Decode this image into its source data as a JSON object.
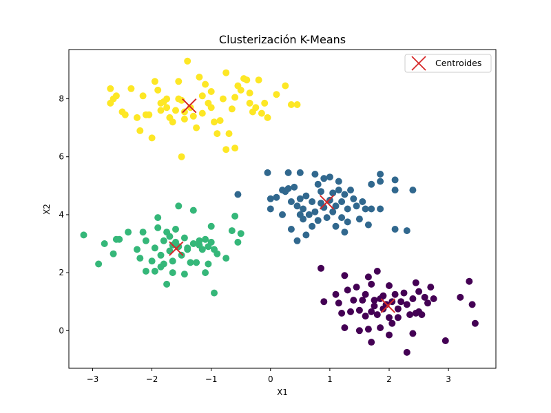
{
  "chart_data": {
    "type": "scatter",
    "title": "Clusterización K-Means",
    "xlabel": "X1",
    "ylabel": "X2",
    "xlim": [
      -3.4,
      3.8
    ],
    "ylim": [
      -1.3,
      9.7
    ],
    "xticks": [
      -3,
      -2,
      -1,
      0,
      1,
      2,
      3
    ],
    "yticks": [
      0,
      2,
      4,
      6,
      8
    ],
    "grid": false,
    "legend_position": "top-right",
    "series": [
      {
        "cluster": 0,
        "color": "#440154",
        "points": [
          [
            0.85,
            2.15
          ],
          [
            0.9,
            1.0
          ],
          [
            1.1,
            1.25
          ],
          [
            1.15,
            0.95
          ],
          [
            1.2,
            0.6
          ],
          [
            1.25,
            1.9
          ],
          [
            1.25,
            0.1
          ],
          [
            1.3,
            1.4
          ],
          [
            1.35,
            0.65
          ],
          [
            1.4,
            1.05
          ],
          [
            1.45,
            1.5
          ],
          [
            1.5,
            0.0
          ],
          [
            1.5,
            0.7
          ],
          [
            1.55,
            1.05
          ],
          [
            1.6,
            0.5
          ],
          [
            1.6,
            1.25
          ],
          [
            1.65,
            0.05
          ],
          [
            1.65,
            1.85
          ],
          [
            1.7,
            0.65
          ],
          [
            1.7,
            -0.4
          ],
          [
            1.75,
            1.05
          ],
          [
            1.75,
            0.85
          ],
          [
            1.8,
            2.05
          ],
          [
            1.8,
            0.55
          ],
          [
            1.85,
            0.1
          ],
          [
            1.85,
            1.1
          ],
          [
            1.9,
            0.75
          ],
          [
            1.9,
            1.2
          ],
          [
            1.95,
            0.9
          ],
          [
            2.0,
            0.45
          ],
          [
            2.0,
            1.55
          ],
          [
            2.05,
            1.0
          ],
          [
            2.05,
            0.25
          ],
          [
            2.1,
            1.25
          ],
          [
            2.15,
            0.75
          ],
          [
            2.2,
            1.0
          ],
          [
            2.25,
            1.3
          ],
          [
            2.3,
            0.9
          ],
          [
            2.3,
            -0.75
          ],
          [
            2.35,
            0.55
          ],
          [
            2.4,
            1.1
          ],
          [
            2.4,
            -0.1
          ],
          [
            2.45,
            1.65
          ],
          [
            2.5,
            0.65
          ],
          [
            2.5,
            1.35
          ],
          [
            2.55,
            0.55
          ],
          [
            2.6,
            1.15
          ],
          [
            2.65,
            0.95
          ],
          [
            2.7,
            1.5
          ],
          [
            2.75,
            1.1
          ],
          [
            2.95,
            -0.35
          ],
          [
            3.2,
            1.15
          ],
          [
            3.35,
            1.7
          ],
          [
            3.4,
            0.9
          ],
          [
            3.45,
            0.25
          ],
          [
            2.0,
            -0.15
          ],
          [
            1.95,
            0.9
          ],
          [
            1.7,
            1.6
          ],
          [
            2.15,
            0.45
          ],
          [
            2.45,
            0.6
          ]
        ]
      },
      {
        "cluster": 1,
        "color": "#31688e",
        "points": [
          [
            -0.55,
            4.7
          ],
          [
            -0.05,
            5.45
          ],
          [
            0.0,
            4.55
          ],
          [
            0.0,
            4.2
          ],
          [
            0.1,
            4.6
          ],
          [
            0.2,
            4.0
          ],
          [
            0.2,
            4.85
          ],
          [
            0.25,
            4.8
          ],
          [
            0.3,
            5.45
          ],
          [
            0.3,
            4.9
          ],
          [
            0.35,
            4.45
          ],
          [
            0.35,
            3.5
          ],
          [
            0.4,
            4.95
          ],
          [
            0.45,
            4.3
          ],
          [
            0.45,
            3.1
          ],
          [
            0.5,
            4.0
          ],
          [
            0.5,
            4.55
          ],
          [
            0.5,
            5.45
          ],
          [
            0.55,
            3.85
          ],
          [
            0.55,
            4.2
          ],
          [
            0.6,
            4.65
          ],
          [
            0.6,
            3.3
          ],
          [
            0.65,
            4.0
          ],
          [
            0.7,
            4.45
          ],
          [
            0.7,
            3.6
          ],
          [
            0.75,
            5.4
          ],
          [
            0.75,
            4.1
          ],
          [
            0.8,
            5.05
          ],
          [
            0.8,
            3.8
          ],
          [
            0.85,
            4.8
          ],
          [
            0.85,
            4.4
          ],
          [
            0.9,
            4.25
          ],
          [
            0.9,
            5.25
          ],
          [
            0.95,
            3.9
          ],
          [
            1.0,
            4.5
          ],
          [
            1.0,
            5.3
          ],
          [
            1.05,
            4.1
          ],
          [
            1.05,
            4.75
          ],
          [
            1.1,
            4.3
          ],
          [
            1.1,
            3.6
          ],
          [
            1.15,
            4.85
          ],
          [
            1.15,
            5.15
          ],
          [
            1.2,
            4.45
          ],
          [
            1.2,
            3.9
          ],
          [
            1.25,
            3.4
          ],
          [
            1.25,
            4.7
          ],
          [
            1.3,
            4.2
          ],
          [
            1.35,
            4.85
          ],
          [
            1.4,
            4.55
          ],
          [
            1.45,
            4.3
          ],
          [
            1.5,
            3.85
          ],
          [
            1.6,
            4.2
          ],
          [
            1.65,
            3.65
          ],
          [
            1.7,
            5.05
          ],
          [
            1.7,
            4.2
          ],
          [
            1.85,
            5.4
          ],
          [
            1.85,
            5.15
          ],
          [
            1.85,
            4.2
          ],
          [
            2.1,
            5.2
          ],
          [
            2.1,
            4.85
          ],
          [
            2.1,
            3.5
          ],
          [
            2.3,
            3.45
          ],
          [
            2.4,
            4.85
          ],
          [
            1.3,
            3.75
          ],
          [
            1.55,
            4.45
          ]
        ]
      },
      {
        "cluster": 2,
        "color": "#35b779",
        "points": [
          [
            -3.15,
            3.3
          ],
          [
            -2.9,
            2.3
          ],
          [
            -2.8,
            3.0
          ],
          [
            -2.65,
            2.65
          ],
          [
            -2.6,
            3.15
          ],
          [
            -2.55,
            3.15
          ],
          [
            -2.4,
            3.4
          ],
          [
            -2.25,
            2.8
          ],
          [
            -2.2,
            2.5
          ],
          [
            -2.15,
            3.4
          ],
          [
            -2.1,
            3.1
          ],
          [
            -2.1,
            2.05
          ],
          [
            -2.0,
            2.4
          ],
          [
            -1.95,
            2.05
          ],
          [
            -1.95,
            2.85
          ],
          [
            -1.9,
            3.55
          ],
          [
            -1.9,
            3.9
          ],
          [
            -1.85,
            2.6
          ],
          [
            -1.85,
            2.2
          ],
          [
            -1.8,
            3.1
          ],
          [
            -1.8,
            2.3
          ],
          [
            -1.75,
            3.4
          ],
          [
            -1.75,
            1.6
          ],
          [
            -1.7,
            2.75
          ],
          [
            -1.7,
            3.25
          ],
          [
            -1.65,
            2.0
          ],
          [
            -1.65,
            2.4
          ],
          [
            -1.6,
            3.05
          ],
          [
            -1.6,
            3.5
          ],
          [
            -1.55,
            2.9
          ],
          [
            -1.55,
            4.3
          ],
          [
            -1.5,
            2.6
          ],
          [
            -1.45,
            3.2
          ],
          [
            -1.45,
            1.95
          ],
          [
            -1.4,
            2.8
          ],
          [
            -1.35,
            2.35
          ],
          [
            -1.3,
            3.0
          ],
          [
            -1.3,
            4.15
          ],
          [
            -1.25,
            2.35
          ],
          [
            -1.2,
            3.1
          ],
          [
            -1.15,
            2.8
          ],
          [
            -1.1,
            3.15
          ],
          [
            -1.1,
            2.0
          ],
          [
            -1.05,
            2.9
          ],
          [
            -1.0,
            3.05
          ],
          [
            -1.0,
            3.6
          ],
          [
            -0.95,
            2.8
          ],
          [
            -0.95,
            1.3
          ],
          [
            -0.9,
            2.65
          ],
          [
            -0.75,
            2.5
          ],
          [
            -0.65,
            3.45
          ],
          [
            -0.6,
            3.95
          ],
          [
            -0.55,
            3.05
          ],
          [
            -0.5,
            3.35
          ],
          [
            -1.4,
            2.85
          ],
          [
            -1.05,
            2.3
          ],
          [
            -1.2,
            2.95
          ],
          [
            -1.65,
            2.95
          ]
        ]
      },
      {
        "cluster": 3,
        "color": "#fde725",
        "points": [
          [
            -2.7,
            8.35
          ],
          [
            -2.7,
            7.85
          ],
          [
            -2.65,
            8.0
          ],
          [
            -2.6,
            8.1
          ],
          [
            -2.5,
            7.55
          ],
          [
            -2.45,
            7.45
          ],
          [
            -2.35,
            8.35
          ],
          [
            -2.25,
            7.35
          ],
          [
            -2.2,
            6.9
          ],
          [
            -2.15,
            8.1
          ],
          [
            -2.1,
            7.45
          ],
          [
            -2.05,
            7.45
          ],
          [
            -2.0,
            6.65
          ],
          [
            -1.95,
            8.6
          ],
          [
            -1.9,
            8.3
          ],
          [
            -1.85,
            7.85
          ],
          [
            -1.85,
            7.6
          ],
          [
            -1.8,
            7.9
          ],
          [
            -1.75,
            7.7
          ],
          [
            -1.75,
            8.0
          ],
          [
            -1.7,
            7.35
          ],
          [
            -1.65,
            7.2
          ],
          [
            -1.6,
            7.6
          ],
          [
            -1.55,
            8.0
          ],
          [
            -1.55,
            8.6
          ],
          [
            -1.5,
            7.95
          ],
          [
            -1.45,
            7.3
          ],
          [
            -1.45,
            7.55
          ],
          [
            -1.4,
            9.3
          ],
          [
            -1.35,
            7.7
          ],
          [
            -1.3,
            7.4
          ],
          [
            -1.25,
            7.0
          ],
          [
            -1.2,
            8.75
          ],
          [
            -1.15,
            8.1
          ],
          [
            -1.15,
            7.5
          ],
          [
            -1.1,
            8.5
          ],
          [
            -1.05,
            7.85
          ],
          [
            -1.0,
            7.7
          ],
          [
            -1.0,
            8.25
          ],
          [
            -0.95,
            7.2
          ],
          [
            -0.9,
            6.8
          ],
          [
            -0.85,
            7.25
          ],
          [
            -0.8,
            8.0
          ],
          [
            -0.75,
            8.9
          ],
          [
            -0.7,
            6.8
          ],
          [
            -0.65,
            7.65
          ],
          [
            -0.6,
            8.05
          ],
          [
            -0.55,
            8.45
          ],
          [
            -0.5,
            8.3
          ],
          [
            -0.45,
            8.7
          ],
          [
            -0.4,
            8.65
          ],
          [
            -0.35,
            8.2
          ],
          [
            -0.3,
            7.55
          ],
          [
            -0.25,
            7.7
          ],
          [
            -0.2,
            8.65
          ],
          [
            -0.15,
            7.5
          ],
          [
            -0.1,
            7.85
          ],
          [
            -0.05,
            7.35
          ],
          [
            0.1,
            8.15
          ],
          [
            0.25,
            8.45
          ],
          [
            0.45,
            7.8
          ],
          [
            -0.75,
            6.25
          ],
          [
            -0.6,
            6.3
          ],
          [
            -1.5,
            6.0
          ],
          [
            -0.35,
            7.85
          ],
          [
            0.35,
            7.8
          ]
        ]
      }
    ],
    "centroids": {
      "label": "Centroides",
      "color": "#d62728",
      "points": [
        [
          1.98,
          0.86
        ],
        [
          0.95,
          4.43
        ],
        [
          -1.59,
          2.83
        ],
        [
          -1.37,
          7.76
        ]
      ]
    }
  }
}
